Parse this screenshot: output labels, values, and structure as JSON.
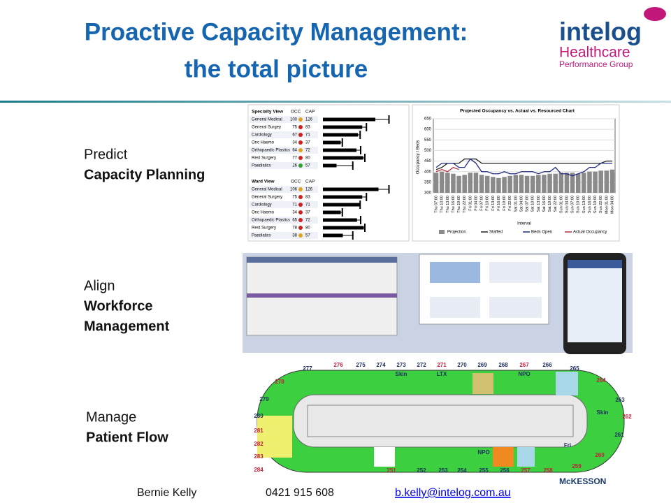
{
  "header": {
    "title_lines": [
      "Proactive Capacity Management:",
      "the total picture"
    ]
  },
  "logo": {
    "name": "intelog",
    "line1": "Healthcare",
    "line2": "Performance Group"
  },
  "sections": [
    {
      "label": "Predict",
      "bold_lines": [
        "Capacity Planning"
      ]
    },
    {
      "label": "Align",
      "bold_lines": [
        "Workforce",
        "Management"
      ]
    },
    {
      "label": "Manage",
      "bold_lines": [
        "Patient Flow"
      ]
    }
  ],
  "capacity_tables": [
    {
      "title": "Specialty View",
      "columns": [
        "OCC",
        "CAP"
      ],
      "rows": [
        [
          "General Medical",
          100,
          126
        ],
        [
          "General Surgey",
          75,
          83
        ],
        [
          "Cardiology",
          67,
          71
        ],
        [
          "Onc Haemo",
          34,
          37
        ],
        [
          "Orthopaedic Plastics",
          64,
          72
        ],
        [
          "Rest Surgery",
          77,
          80
        ],
        [
          "Paediatics",
          26,
          57
        ]
      ]
    },
    {
      "title": "Ward View",
      "columns": [
        "OCC",
        "CAP"
      ],
      "rows": [
        [
          "General Medical",
          106,
          126
        ],
        [
          "General Surgery",
          75,
          83
        ],
        [
          "Cardiology",
          71,
          71
        ],
        [
          "Onc Haemo",
          34,
          37
        ],
        [
          "Orthopaedic Plastics",
          65,
          72
        ],
        [
          "Rest Surgery",
          78,
          80
        ],
        [
          "Paediatics",
          38,
          57
        ]
      ]
    }
  ],
  "chart_data": {
    "type": "line",
    "title": "Projected Occupancy vs. Actual vs. Resourced Chart",
    "y_label": "Occupancy / Beds",
    "x_label": "Interval",
    "ylim": [
      300,
      650
    ],
    "yticks": [
      300,
      350,
      400,
      450,
      500,
      550,
      600,
      650
    ],
    "categories": [
      "Thu 07:00",
      "Thu 10:00",
      "Thu 13:00",
      "Thu 16:00",
      "Thu 19:00",
      "Thu 22:00",
      "Fri 01:00",
      "Fri 04:00",
      "Fri 07:00",
      "Fri 10:00",
      "Fri 13:00",
      "Fri 16:00",
      "Fri 19:00",
      "Fri 22:00",
      "Sat 01:00",
      "Sat 04:00",
      "Sat 07:00",
      "Sat 10:00",
      "Sat 13:00",
      "Sat 16:00",
      "Sat 19:00",
      "Sat 22:00",
      "Sun 01:00",
      "Sun 04:00",
      "Sun 07:00",
      "Sun 10:00",
      "Sun 13:00",
      "Sun 16:00",
      "Sun 19:00",
      "Sun 22:00",
      "Mon 01:00",
      "Mon 04:00"
    ],
    "series": [
      {
        "name": "Projection",
        "color": "#8a8a8a",
        "kind": "bar",
        "values": [
          395,
          400,
          395,
          390,
          380,
          385,
          395,
          395,
          385,
          380,
          375,
          370,
          375,
          380,
          385,
          385,
          380,
          380,
          385,
          385,
          390,
          390,
          395,
          395,
          395,
          390,
          395,
          400,
          400,
          405,
          405,
          410
        ]
      },
      {
        "name": "Staffed",
        "color": "#222222",
        "values": [
          410,
          420,
          440,
          440,
          440,
          460,
          460,
          460,
          440,
          440,
          440,
          440,
          440,
          440,
          440,
          440,
          440,
          440,
          440,
          440,
          440,
          440,
          440,
          440,
          440,
          440,
          440,
          440,
          440,
          440,
          450,
          450
        ]
      },
      {
        "name": "Beds Open",
        "color": "#1f2a80",
        "values": [
          420,
          440,
          440,
          440,
          420,
          420,
          460,
          440,
          400,
          400,
          390,
          390,
          400,
          390,
          390,
          400,
          400,
          400,
          390,
          400,
          400,
          420,
          390,
          390,
          380,
          390,
          400,
          420,
          420,
          440,
          440,
          440
        ]
      },
      {
        "name": "Actual Occupancy",
        "color": "#b03040",
        "values": [
          400,
          410,
          400,
          420,
          410,
          null,
          null,
          null,
          null,
          null,
          null,
          null,
          null,
          null,
          null,
          null,
          null,
          null,
          null,
          null,
          null,
          null,
          null,
          null,
          null,
          null,
          null,
          null,
          null,
          null,
          null,
          null
        ]
      }
    ]
  },
  "floor_map": {
    "rooms": [
      {
        "label": "277",
        "color": "#1f3060"
      },
      {
        "label": "276",
        "color": "#c0203a"
      },
      {
        "label": "275",
        "color": "#1f3060"
      },
      {
        "label": "274",
        "color": "#1f3060"
      },
      {
        "label": "273",
        "color": "#1f3060"
      },
      {
        "label": "272",
        "color": "#1f3060"
      },
      {
        "label": "271",
        "color": "#c0203a"
      },
      {
        "label": "270",
        "color": "#1f3060"
      },
      {
        "label": "269",
        "color": "#1f3060"
      },
      {
        "label": "268",
        "color": "#1f3060"
      },
      {
        "label": "267",
        "color": "#c0203a"
      },
      {
        "label": "266",
        "color": "#1f3060"
      },
      {
        "label": "265",
        "color": "#1f3060"
      },
      {
        "label": "264",
        "color": "#c0203a"
      },
      {
        "label": "263",
        "color": "#1f3060"
      },
      {
        "label": "262",
        "color": "#c0203a"
      },
      {
        "label": "261",
        "color": "#1f3060"
      },
      {
        "label": "260",
        "color": "#c0203a"
      },
      {
        "label": "259",
        "color": "#c0203a"
      },
      {
        "label": "258",
        "color": "#c0203a"
      },
      {
        "label": "257",
        "color": "#c0203a"
      },
      {
        "label": "256",
        "color": "#1f3060"
      },
      {
        "label": "255",
        "color": "#1f3060"
      },
      {
        "label": "254",
        "color": "#1f3060"
      },
      {
        "label": "253",
        "color": "#1f3060"
      },
      {
        "label": "252",
        "color": "#1f3060"
      },
      {
        "label": "251",
        "color": "#c0203a"
      },
      {
        "label": "284",
        "color": "#c0203a"
      },
      {
        "label": "283",
        "color": "#c0203a"
      },
      {
        "label": "282",
        "color": "#c0203a"
      },
      {
        "label": "281",
        "color": "#c0203a"
      },
      {
        "label": "280",
        "color": "#1f3060"
      },
      {
        "label": "279",
        "color": "#1f3060"
      },
      {
        "label": "278",
        "color": "#c0203a"
      }
    ],
    "tags": [
      "Skin",
      "LTX",
      "NPO",
      "Skin",
      "NPO",
      "Fri"
    ]
  },
  "footer": {
    "name": "Bernie Kelly",
    "phone": "0421 915 608",
    "email": "b.kelly@intelog.com.au",
    "brand": "McKESSON"
  }
}
